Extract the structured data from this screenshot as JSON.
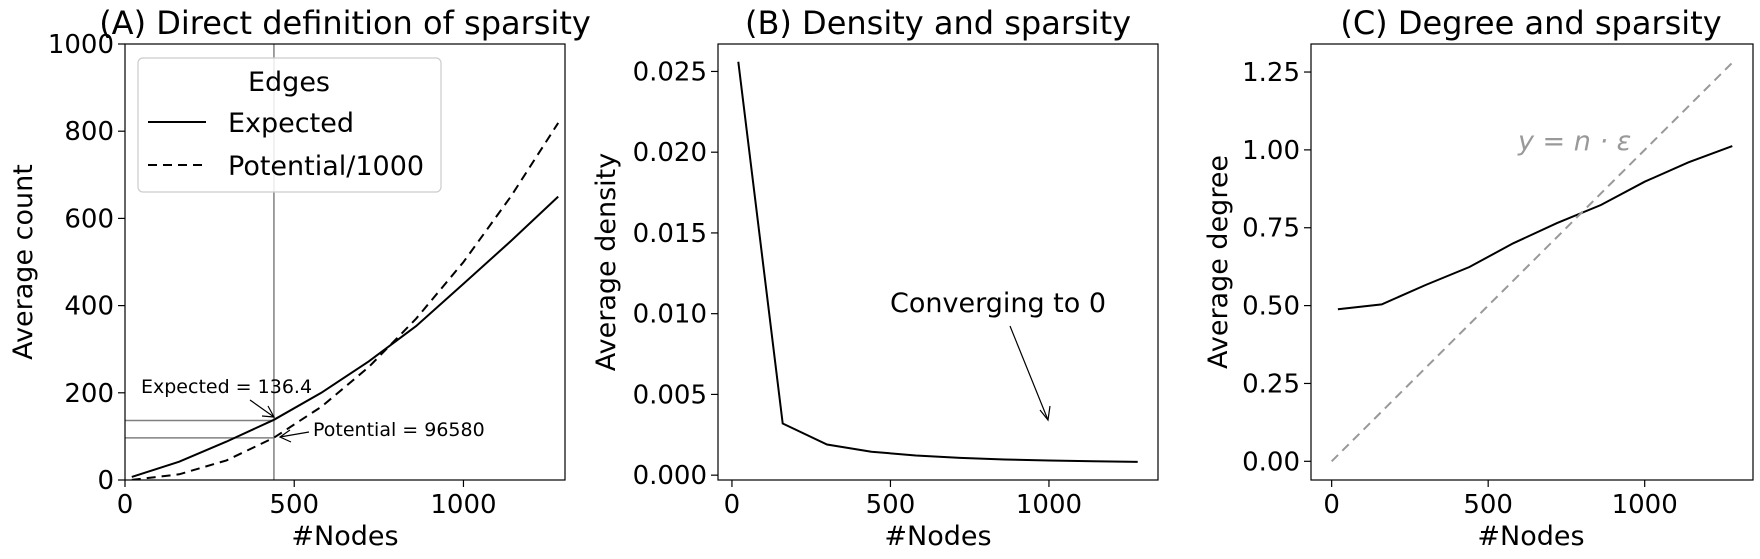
{
  "chart_data": [
    {
      "type": "line",
      "title": "(A) Direct definition of sparsity",
      "xlabel": "#Nodes",
      "ylabel": "Average count",
      "xlim": [
        0,
        1300
      ],
      "ylim": [
        0,
        1000
      ],
      "xticks": [
        0,
        500,
        1000
      ],
      "yticks": [
        0,
        200,
        400,
        600,
        800,
        1000
      ],
      "legend": {
        "title": "Edges",
        "placement": "top-left"
      },
      "series": [
        {
          "name": "Expected",
          "style": "solid",
          "color": "#000000",
          "x": [
            20,
            160,
            300,
            440,
            580,
            720,
            860,
            1000,
            1140,
            1280
          ],
          "y": [
            7,
            42,
            88,
            138,
            200,
            272,
            353,
            450,
            548,
            650
          ]
        },
        {
          "name": "Potential/1000",
          "style": "dashed",
          "color": "#000000",
          "x": [
            20,
            160,
            300,
            440,
            580,
            720,
            860,
            1000,
            1140,
            1280
          ],
          "y": [
            0.2,
            13,
            45,
            97,
            168,
            259,
            370,
            500,
            650,
            819
          ]
        }
      ],
      "reference_lines": {
        "x": 440,
        "y": [
          136.4,
          96.58
        ],
        "color": "#808080"
      },
      "annotations": [
        {
          "text": "Expected = 136.4",
          "x": 440,
          "y": 136.4,
          "text_x": 50,
          "text_y": 205
        },
        {
          "text": "Potential = 96580",
          "x": 445,
          "y": 96.58,
          "text_x": 555,
          "text_y": 105
        }
      ]
    },
    {
      "type": "line",
      "title": "(B) Density and sparsity",
      "xlabel": "#Nodes",
      "ylabel": "Average density",
      "xlim": [
        -44,
        1344
      ],
      "ylim": [
        -0.0003,
        0.0267
      ],
      "xticks": [
        0,
        500,
        1000
      ],
      "yticks": [
        0.0,
        0.005,
        0.01,
        0.015,
        0.02,
        0.025
      ],
      "ytick_labels": [
        "0.000",
        "0.005",
        "0.010",
        "0.015",
        "0.020",
        "0.025"
      ],
      "series": [
        {
          "name": "",
          "style": "solid",
          "color": "#000000",
          "x": [
            20,
            160,
            300,
            440,
            580,
            720,
            860,
            1000,
            1140,
            1280
          ],
          "y": [
            0.0256,
            0.0032,
            0.0019,
            0.00145,
            0.00122,
            0.00107,
            0.00097,
            0.00091,
            0.00086,
            0.00082
          ]
        }
      ],
      "annotations": [
        {
          "text": "Converging to 0",
          "x": 1000,
          "y": 0.0032,
          "text_x": 500,
          "text_y": 0.0095
        }
      ]
    },
    {
      "type": "line",
      "title": "(C) Degree and sparsity",
      "xlabel": "#Nodes",
      "ylabel": "Average degree",
      "xlim": [
        -66,
        1346
      ],
      "ylim": [
        -0.06,
        1.34
      ],
      "xticks": [
        0,
        500,
        1000
      ],
      "yticks": [
        0.0,
        0.25,
        0.5,
        0.75,
        1.0,
        1.25
      ],
      "ytick_labels": [
        "0.00",
        "0.25",
        "0.50",
        "0.75",
        "1.00",
        "1.25"
      ],
      "series": [
        {
          "name": "",
          "style": "solid",
          "color": "#000000",
          "x": [
            20,
            160,
            300,
            440,
            580,
            720,
            860,
            1000,
            1140,
            1280
          ],
          "y": [
            0.488,
            0.504,
            0.566,
            0.624,
            0.7,
            0.765,
            0.823,
            0.898,
            0.96,
            1.012
          ]
        },
        {
          "name": "",
          "style": "dashed",
          "color": "#999999",
          "x": [
            0,
            1280
          ],
          "y": [
            0.0,
            1.28
          ]
        }
      ],
      "annotations": [
        {
          "text": "y = n · ε",
          "x": 600,
          "y": 0.985,
          "color": "#999999"
        }
      ]
    }
  ]
}
